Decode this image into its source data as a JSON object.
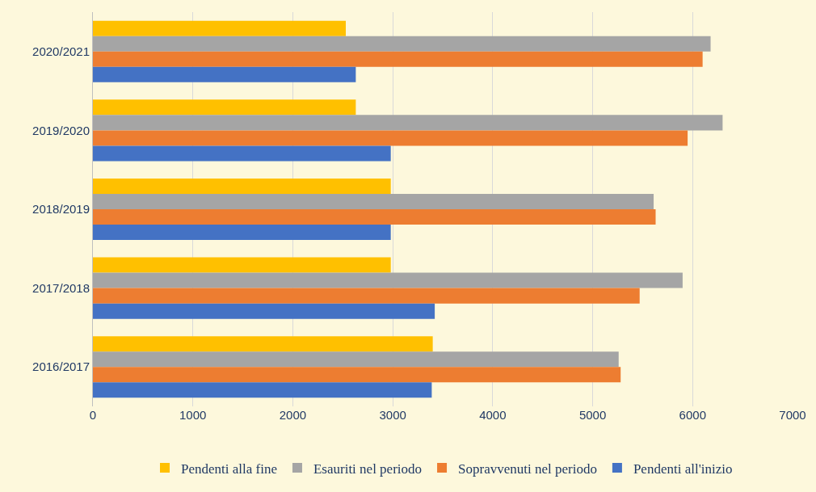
{
  "chart_data": {
    "type": "bar",
    "orientation": "horizontal",
    "categories": [
      "2020/2021",
      "2019/2020",
      "2018/2019",
      "2017/2018",
      "2016/2017"
    ],
    "series": [
      {
        "name": "Pendenti alla fine",
        "color": "#ffc000",
        "values": [
          2530,
          2630,
          2980,
          2980,
          3400
        ]
      },
      {
        "name": "Esauriti nel periodo",
        "color": "#a5a5a5",
        "values": [
          6180,
          6300,
          5610,
          5900,
          5260
        ]
      },
      {
        "name": "Sopravvenuti nel periodo",
        "color": "#ed7d31",
        "values": [
          6100,
          5950,
          5630,
          5470,
          5280
        ]
      },
      {
        "name": "Pendenti all'inizio",
        "color": "#4472c4",
        "values": [
          2630,
          2980,
          2980,
          3420,
          3390
        ]
      }
    ],
    "xlim": [
      0,
      7000
    ],
    "xticks": [
      0,
      1000,
      2000,
      3000,
      4000,
      5000,
      6000,
      7000
    ],
    "grid": "x",
    "legend": "bottom"
  }
}
